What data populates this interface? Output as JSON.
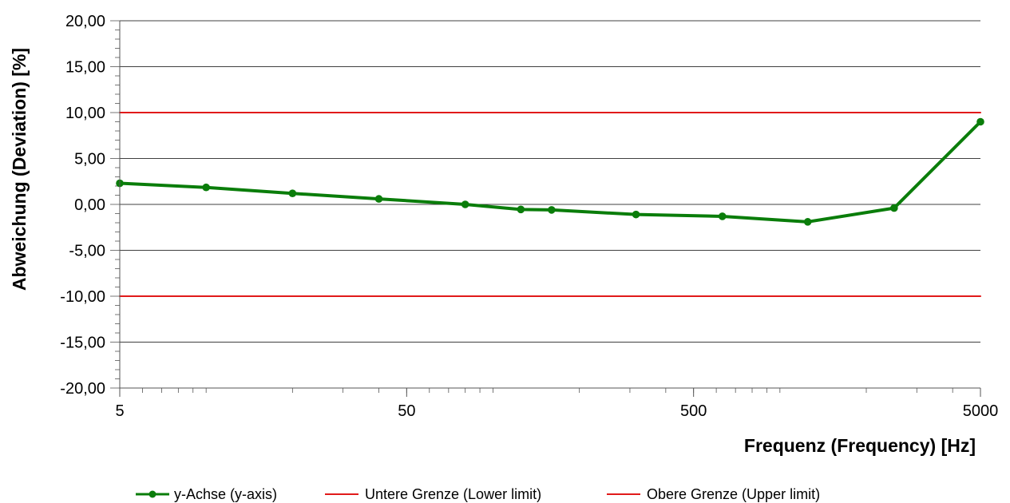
{
  "chart_data": {
    "type": "line",
    "title": "",
    "xlabel": "Frequenz (Frequency) [Hz]",
    "ylabel": "Abweichung (Deviation) [%]",
    "x_scale": "log",
    "xlim": [
      5,
      5000
    ],
    "ylim": [
      -20,
      20
    ],
    "x_tick_labels": [
      "5",
      "50",
      "500",
      "5000"
    ],
    "x_tick_values": [
      5,
      50,
      500,
      5000
    ],
    "y_tick_labels": [
      "20,00",
      "15,00",
      "10,00",
      "5,00",
      "0,00",
      "-5,00",
      "-10,00",
      "-15,00",
      "-20,00"
    ],
    "y_tick_values": [
      20,
      15,
      10,
      5,
      0,
      -5,
      -10,
      -15,
      -20
    ],
    "grid": "horizontal",
    "legend_position": "bottom",
    "series": [
      {
        "name": "y-Achse (y-axis)",
        "color": "#0a7d0a",
        "marker": "circle",
        "x": [
          5,
          10,
          20,
          40,
          80,
          125,
          160,
          315,
          630,
          1250,
          2500,
          5000
        ],
        "y": [
          2.3,
          1.85,
          1.2,
          0.6,
          0.0,
          -0.55,
          -0.6,
          -1.1,
          -1.3,
          -1.9,
          -0.4,
          9.0
        ]
      },
      {
        "name": "Untere Grenze (Lower limit)",
        "color": "#e11a1a",
        "marker": "none",
        "x": [
          5,
          5000
        ],
        "y": [
          -10,
          -10
        ]
      },
      {
        "name": "Obere Grenze (Upper limit)",
        "color": "#e11a1a",
        "marker": "none",
        "x": [
          5,
          5000
        ],
        "y": [
          10,
          10
        ]
      }
    ]
  }
}
